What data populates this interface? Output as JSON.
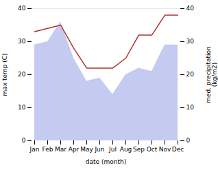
{
  "chart_data": {
    "type": "line",
    "xlabel": "date (month)",
    "ylabel": "max temp (C)",
    "y2label": "med. precipitation\n(kg/m2)",
    "categories": [
      "Jan",
      "Feb",
      "Mar",
      "Apr",
      "May",
      "Jun",
      "Jul",
      "Aug",
      "Sep",
      "Oct",
      "Nov",
      "Dec"
    ],
    "series": [
      {
        "type": "area",
        "color": "#c5caf0",
        "values": [
          29,
          30,
          36,
          25,
          18,
          19,
          14,
          20,
          22,
          21,
          29,
          29
        ]
      },
      {
        "type": "line",
        "color": "#b03030",
        "axis": "y2",
        "values": [
          33,
          34,
          35,
          28,
          22,
          22,
          22,
          25,
          32,
          32,
          38,
          38
        ]
      }
    ],
    "ylim": [
      0,
      40
    ],
    "yticks": [
      0,
      10,
      20,
      30,
      40
    ],
    "y2lim": [
      0,
      40
    ],
    "y2ticks": [
      0,
      10,
      20,
      30,
      40
    ],
    "grid": false
  }
}
